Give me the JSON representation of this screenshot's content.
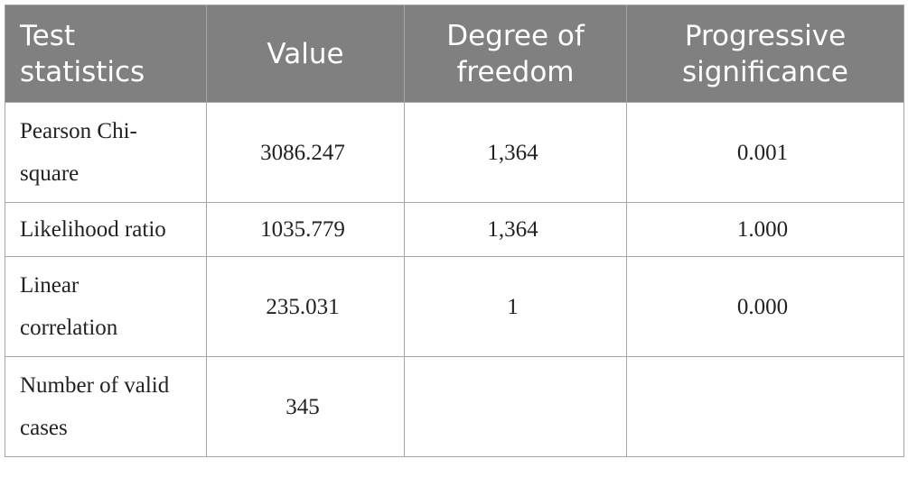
{
  "table": {
    "header": [
      "Test statistics",
      "Value",
      "Degree of freedom",
      "Progressive significance"
    ],
    "rows": [
      [
        "Pearson Chi-square",
        "3086.247",
        "1,364",
        "0.001"
      ],
      [
        "Likelihood ratio",
        "1035.779",
        "1,364",
        "1.000"
      ],
      [
        "Linear correlation",
        "235.031",
        "1",
        "0.000"
      ],
      [
        "Number of valid cases",
        "345"
      ]
    ]
  }
}
